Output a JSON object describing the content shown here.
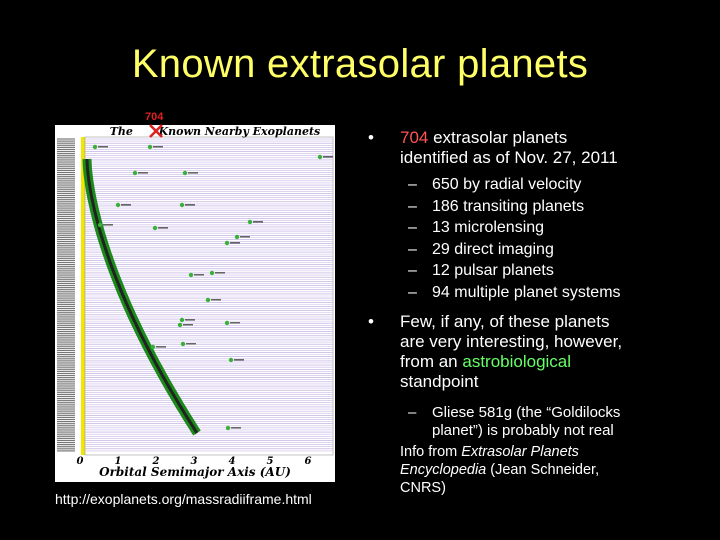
{
  "slide": {
    "title": "Known extrasolar planets",
    "chart_label": "704",
    "chart_title": "The ___ Known Nearby Exoplanets",
    "chart_xlabel": "Orbital Semimajor Axis (AU)",
    "chart_xticks": [
      "0",
      "1",
      "2",
      "3",
      "4",
      "5",
      "6"
    ],
    "source_url": "http://exoplanets.org/massradiiframe.html",
    "bullet1": {
      "highlight": "704",
      "line1_rest": " extrasolar planets",
      "line2": "identified as of Nov. 27, 2011"
    },
    "sub_items": [
      "650 by radial velocity",
      "186 transiting planets",
      "13 microlensing",
      "29 direct imaging",
      "12 pulsar planets",
      "94 multiple planet systems"
    ],
    "bullet2": {
      "line1": "Few, if any, of these planets",
      "line2": "are very interesting, however,",
      "line3_pre": "from an ",
      "line3_highlight": "astrobiological",
      "line4": "standpoint"
    },
    "sub_items2": [
      "Gliese 581g (the “Goldilocks",
      "planet”) is probably not real"
    ],
    "info": {
      "pre": "Info from ",
      "em1": "Extrasolar Planets",
      "em2": "Encyclopedia",
      "post1": " (Jean Schneider,",
      "post2": "CNRS)"
    },
    "bullet_char": "•",
    "dash_char": "–"
  }
}
